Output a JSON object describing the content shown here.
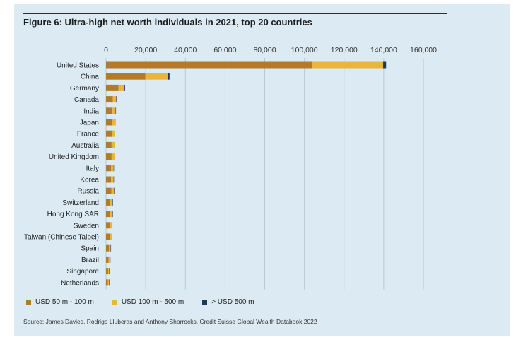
{
  "title": "Figure 6: Ultra-high net worth individuals in 2021, top 20 countries",
  "source": "Source: James Davies, Rodrigo Lluberas and Anthony Shorrocks, Credit Suisse Global Wealth Databook 2022",
  "colors": {
    "panel_bg": "#dcebf3",
    "series_1": "#b47a2c",
    "series_2": "#eab53f",
    "series_3": "#1b3a5c",
    "grid": "#b9c9d3"
  },
  "chart_data": {
    "type": "bar",
    "orientation": "horizontal",
    "stacked": true,
    "title": "Figure 6: Ultra-high net worth individuals in 2021, top 20 countries",
    "xlabel": "",
    "ylabel": "",
    "xlim": [
      0,
      160000
    ],
    "x_ticks": [
      0,
      20000,
      40000,
      60000,
      80000,
      100000,
      120000,
      140000,
      160000
    ],
    "x_tick_labels": [
      "0",
      "20,000",
      "40,000",
      "60,000",
      "80,000",
      "100,000",
      "120,000",
      "140,000",
      "160,000"
    ],
    "x_axis_position": "top",
    "grid": true,
    "legend_position": "bottom-left",
    "categories": [
      "United States",
      "China",
      "Germany",
      "Canada",
      "India",
      "Japan",
      "France",
      "Australia",
      "United Kingdom",
      "Italy",
      "Korea",
      "Russia",
      "Switzerland",
      "Hong Kong SAR",
      "Sweden",
      "Taiwan (Chinese Taipei)",
      "Spain",
      "Brazil",
      "Singapore",
      "Netherlands"
    ],
    "series": [
      {
        "name": "USD 50 m - 100 m",
        "color": "#b47a2c",
        "values": [
          103800,
          19800,
          6300,
          3400,
          3200,
          3000,
          2900,
          2800,
          2800,
          2500,
          2500,
          2700,
          2200,
          2100,
          2000,
          1900,
          1500,
          1300,
          1100,
          1000
        ]
      },
      {
        "name": "USD 100 m - 500 m",
        "color": "#eab53f",
        "values": [
          35900,
          11500,
          3000,
          1700,
          1600,
          1500,
          1500,
          1500,
          1500,
          1300,
          1300,
          1300,
          1100,
          1100,
          1000,
          1000,
          800,
          700,
          500,
          500
        ]
      },
      {
        "name": "> USD 500 m",
        "color": "#1b3a5c",
        "values": [
          1500,
          700,
          300,
          100,
          100,
          100,
          100,
          100,
          100,
          100,
          100,
          100,
          100,
          100,
          100,
          100,
          50,
          50,
          50,
          50
        ]
      }
    ]
  }
}
